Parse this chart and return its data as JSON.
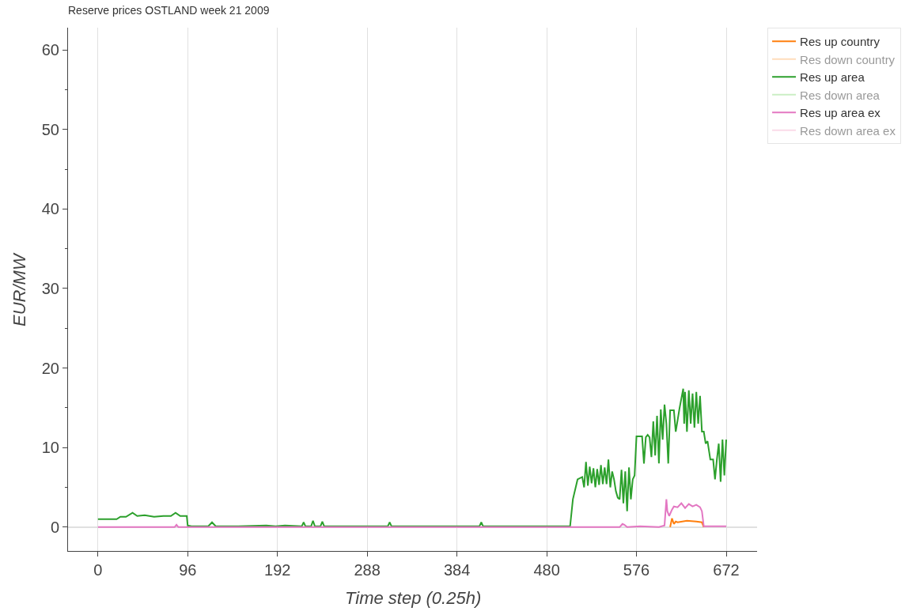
{
  "chart_data": {
    "type": "line",
    "title": "Reserve prices OSTLAND week 21 2009",
    "xlabel": "Time step (0.25h)",
    "ylabel": "EUR/MW",
    "xlim": [
      -32,
      705
    ],
    "ylim": [
      -3,
      62.8
    ],
    "xticks": [
      0,
      96,
      192,
      288,
      384,
      480,
      576,
      672
    ],
    "yticks": [
      0,
      10,
      20,
      30,
      40,
      50,
      60
    ],
    "grid": "x",
    "legend": "top right",
    "line_style": "solid",
    "marker": "none",
    "series": [
      {
        "name": "Res up country",
        "color": "#ff7f0e",
        "x": [
          612,
          614,
          616,
          618,
          620,
          630,
          640,
          646,
          648
        ],
        "values": [
          0,
          1.1,
          0.4,
          0.7,
          0.6,
          0.8,
          0.7,
          0.6,
          0
        ]
      },
      {
        "name": "Res down country",
        "color": "#ffbb78"
      },
      {
        "name": "Res up area",
        "color": "#2ca02c",
        "x": [
          0,
          20,
          24,
          30,
          37,
          42,
          50,
          60,
          70,
          78,
          83,
          88,
          94,
          95,
          96,
          100,
          118,
          122,
          126,
          130,
          150,
          180,
          190,
          200,
          218,
          220,
          222,
          228,
          230,
          232,
          238,
          240,
          242,
          246,
          250,
          300,
          310,
          312,
          314,
          330,
          408,
          410,
          412,
          430,
          500,
          505,
          508,
          513,
          518,
          520,
          522,
          524,
          526,
          528,
          530,
          532,
          534,
          536,
          538,
          540,
          542,
          544,
          546,
          548,
          550,
          552,
          554,
          556,
          558,
          560,
          562,
          564,
          566,
          568,
          570,
          572,
          574,
          576,
          578,
          582,
          584,
          586,
          588,
          590,
          592,
          594,
          596,
          598,
          600,
          602,
          604,
          606,
          608,
          610,
          612,
          614,
          616,
          618,
          622,
          626,
          627,
          628,
          630,
          632,
          634,
          636,
          638,
          640,
          642,
          644,
          646,
          648,
          650,
          652,
          655,
          658,
          660,
          662,
          664,
          666,
          668,
          670,
          672
        ],
        "values": [
          1.0,
          1.0,
          1.3,
          1.3,
          1.8,
          1.4,
          1.5,
          1.3,
          1.4,
          1.4,
          1.8,
          1.4,
          1.4,
          1.4,
          0.2,
          0.1,
          0.1,
          0.6,
          0.1,
          0.1,
          0.1,
          0.2,
          0.1,
          0.2,
          0.1,
          0.6,
          0.1,
          0.1,
          0.8,
          0.1,
          0.1,
          0.7,
          0.1,
          0.1,
          0.1,
          0.1,
          0.1,
          0.6,
          0.1,
          0.1,
          0.1,
          0.6,
          0.1,
          0.1,
          0.1,
          0.1,
          3.5,
          6.0,
          6.3,
          5.0,
          8.2,
          5.2,
          7.6,
          5.5,
          7.4,
          5.0,
          7.3,
          5.3,
          7.8,
          5.4,
          7.5,
          5.4,
          8.5,
          5.0,
          7.0,
          6.0,
          4.5,
          3.7,
          3.5,
          7.2,
          3.0,
          7.0,
          2.0,
          7.5,
          3.5,
          6.0,
          6.5,
          11.4,
          11.4,
          11.4,
          8.0,
          11.3,
          11.6,
          11.3,
          8.8,
          13.3,
          9.0,
          14.0,
          8.0,
          14.8,
          11.0,
          15.4,
          13.0,
          8.0,
          14.7,
          14.7,
          14.7,
          12.0,
          14.9,
          17.4,
          13.0,
          17.0,
          12.0,
          17.2,
          13.0,
          16.8,
          12.5,
          17.0,
          13.0,
          16.5,
          12.0,
          12.0,
          10.5,
          10.8,
          8.5,
          8.5,
          6.0,
          8.5,
          10.5,
          5.7,
          11.0,
          6.5,
          11.0
        ]
      },
      {
        "name": "Res down area",
        "color": "#98df8a"
      },
      {
        "name": "Res up area ex",
        "color": "#e377c2",
        "x": [
          0,
          40,
          82,
          84,
          86,
          200,
          400,
          558,
          561,
          563,
          566,
          580,
          600,
          606,
          608,
          609,
          611,
          614,
          616,
          620,
          624,
          628,
          632,
          636,
          640,
          644,
          646,
          648,
          672
        ],
        "values": [
          0,
          0,
          0,
          0.3,
          0,
          0,
          0,
          0,
          0.4,
          0.3,
          0,
          0.1,
          0,
          0.2,
          3.5,
          2.0,
          1.4,
          2.2,
          2.6,
          2.5,
          3.0,
          2.4,
          2.9,
          2.6,
          2.8,
          2.5,
          2.0,
          0.1,
          0.1
        ]
      },
      {
        "name": "Res down area ex",
        "color": "#f7b6d2"
      }
    ]
  }
}
